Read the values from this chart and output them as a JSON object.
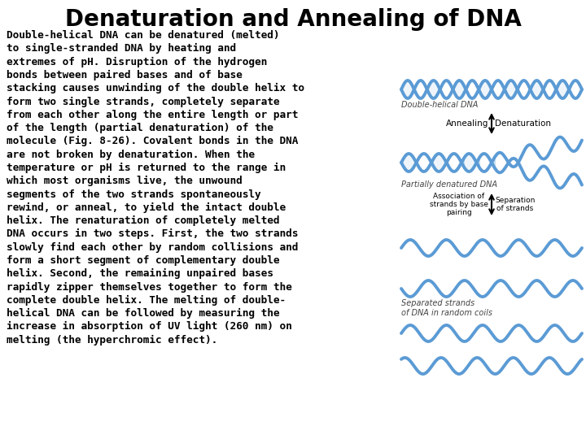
{
  "title": "Denaturation and Annealing of DNA",
  "title_fontsize": 20,
  "body_text": "Double-helical DNA can be denatured (melted)\nto single-stranded DNA by heating and\nextremes of pH. Disruption of the hydrogen\nbonds between paired bases and of base\nstacking causes unwinding of the double helix to\nform two single strands, completely separate\nfrom each other along the entire length or part\nof the length (partial denaturation) of the\nmolecule (Fig. 8-26). Covalent bonds in the DNA\nare not broken by denaturation. When the\ntemperature or pH is returned to the range in\nwhich most organisms live, the unwound\nsegments of the two strands spontaneously\nrewind, or anneal, to yield the intact double\nhelix. The renaturation of completely melted\nDNA occurs in two steps. First, the two strands\nslowly find each other by random collisions and\nform a short segment of complementary double\nhelix. Second, the remaining unpaired bases\nrapidly zipper themselves together to form the\ncomplete double helix. The melting of double-\nhelical DNA can be followed by measuring the\nincrease in absorption of UV light (260 nm) on\nmelting (the hyperchromic effect).",
  "body_fontsize": 9.2,
  "background_color": "#ffffff",
  "text_color": "#000000",
  "img_label1": "Double-helical DNA",
  "img_label2": "Partially denatured DNA",
  "img_label3": "Separated strands\nof DNA in random coils",
  "arrow_label_left": "Annealing",
  "arrow_label_right": "Denaturation",
  "arrow_label2_left": "Association of\nstrands by base\npairing",
  "arrow_label2_right": "Separation\nof strands",
  "dna_color1": "#5b9bd5",
  "dna_color2": "#aaccee",
  "dna_bar_color": "#c8dff0"
}
